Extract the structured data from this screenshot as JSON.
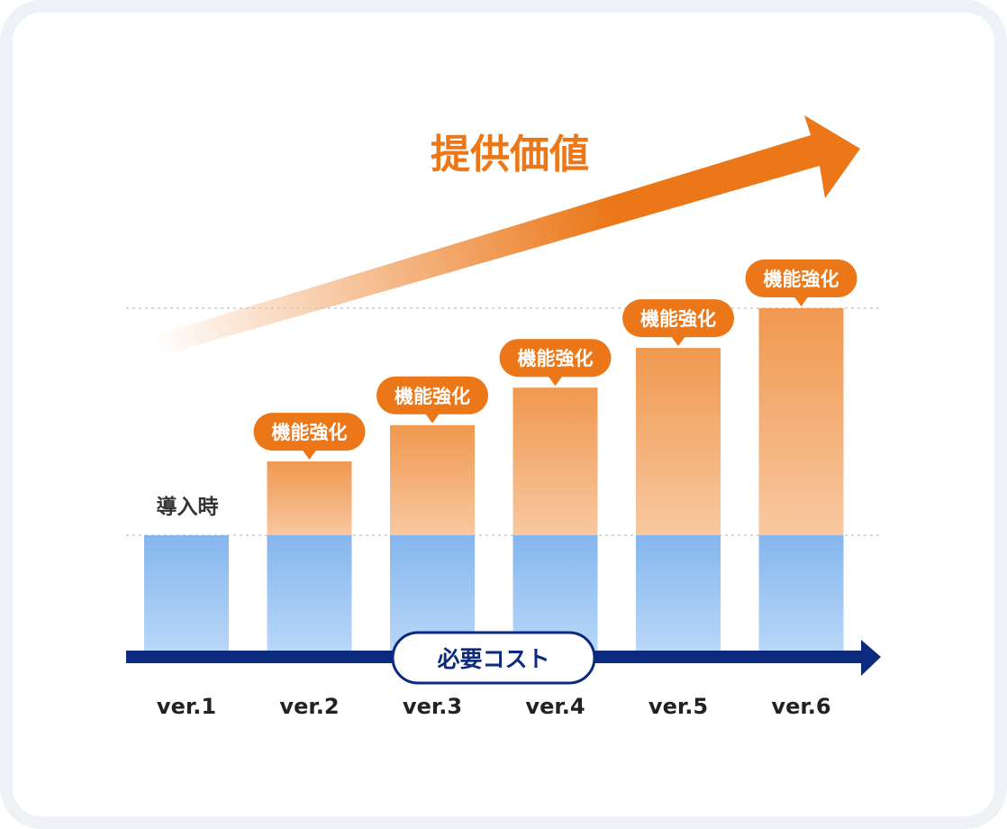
{
  "chart_data": {
    "type": "bar",
    "categories": [
      "ver.1",
      "ver.2",
      "ver.3",
      "ver.4",
      "ver.5",
      "ver.6"
    ],
    "series": [
      {
        "name": "必要コスト",
        "values": [
          1,
          1,
          1,
          1,
          1,
          1
        ],
        "color": "#8fbdf2"
      },
      {
        "name": "機能強化",
        "values": [
          0,
          0.65,
          0.97,
          1.3,
          1.65,
          2.0
        ],
        "color": "#f2a261"
      }
    ],
    "bar_annotation": "機能強化",
    "baseline_label": "導入時",
    "value_arrow_label": "提供価値",
    "cost_axis_label": "必要コスト",
    "colors": {
      "orange": "#eb7718",
      "navy": "#0c2a7e",
      "blue_bar": "#8fbdf2",
      "orange_bar": "#f2a261"
    }
  }
}
